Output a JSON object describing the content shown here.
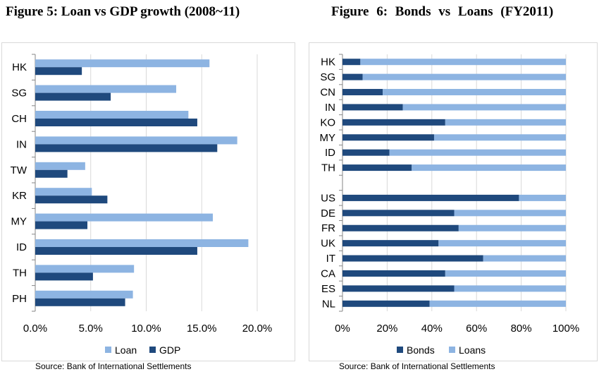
{
  "titles": {
    "left": "Figure 5: Loan vs GDP growth (2008~11)",
    "right": "Figure  6:  Bonds  vs  Loans  (FY2011)"
  },
  "sources": {
    "left": "Source: Bank of International Settlements",
    "right": "Source: Bank of International Settlements"
  },
  "chart_data": [
    {
      "type": "bar",
      "orientation": "horizontal",
      "categories": [
        "HK",
        "SG",
        "CH",
        "IN",
        "TW",
        "KR",
        "MY",
        "ID",
        "TH",
        "PH"
      ],
      "series": [
        {
          "name": "Loan",
          "color": "#8db4e2",
          "values": [
            15.7,
            12.7,
            13.8,
            18.2,
            4.5,
            5.1,
            16.0,
            19.2,
            8.9,
            8.8
          ]
        },
        {
          "name": "GDP",
          "color": "#1f497d",
          "values": [
            4.2,
            6.8,
            14.6,
            16.4,
            2.9,
            6.5,
            4.7,
            14.6,
            5.2,
            8.1
          ]
        }
      ],
      "xlim": [
        0,
        20
      ],
      "xticks": [
        "0.0%",
        "5.0%",
        "10.0%",
        "15.0%",
        "20.0%"
      ],
      "grid": true,
      "legend": "bottom"
    },
    {
      "type": "bar",
      "orientation": "horizontal",
      "stacked": true,
      "categories": [
        "HK",
        "SG",
        "CN",
        "IN",
        "KO",
        "MY",
        "ID",
        "TH",
        "",
        "US",
        "DE",
        "FR",
        "UK",
        "IT",
        "CA",
        "ES",
        "NL"
      ],
      "series": [
        {
          "name": "Bonds",
          "color": "#1f497d",
          "values": [
            8,
            9,
            18,
            27,
            46,
            41,
            21,
            31,
            null,
            79,
            50,
            52,
            43,
            63,
            46,
            50,
            39
          ]
        },
        {
          "name": "Loans",
          "color": "#8db4e2",
          "values": [
            92,
            91,
            82,
            73,
            54,
            59,
            79,
            69,
            null,
            21,
            50,
            48,
            57,
            37,
            54,
            50,
            61
          ]
        }
      ],
      "xlim": [
        0,
        100
      ],
      "xticks": [
        "0%",
        "20%",
        "40%",
        "60%",
        "80%",
        "100%"
      ],
      "grid": true,
      "legend": "bottom"
    }
  ]
}
